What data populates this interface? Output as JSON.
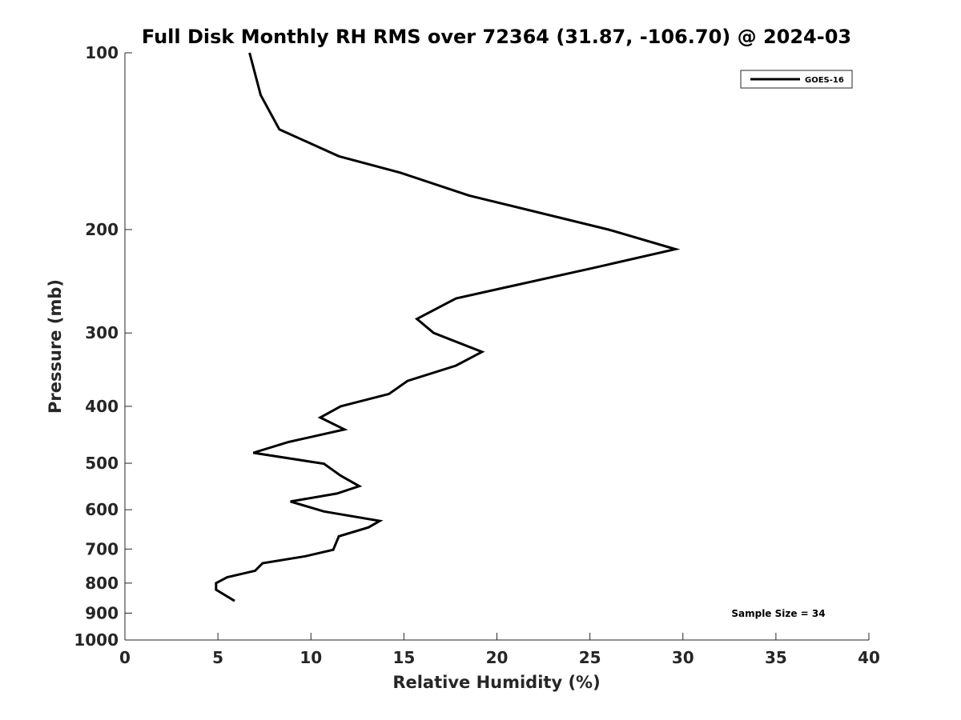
{
  "chart_data": {
    "type": "line",
    "title": "Full Disk Monthly RH RMS over 72364 (31.87, -106.70) @ 2024-03",
    "xlabel": "Relative Humidity (%)",
    "ylabel": "Pressure (mb)",
    "xlim": [
      0,
      40
    ],
    "ylim": [
      100,
      1000
    ],
    "y_scale": "log",
    "y_reversed": true,
    "x_ticks": [
      "0",
      "5",
      "10",
      "15",
      "20",
      "25",
      "30",
      "35",
      "40"
    ],
    "y_ticks": [
      "100",
      "200",
      "300",
      "400",
      "500",
      "600",
      "700",
      "800",
      "900",
      "1000"
    ],
    "legend_position": "top-right",
    "grid": false,
    "series": [
      {
        "name": "GOES-16",
        "color": "#000000",
        "points": [
          {
            "x": 6.7,
            "y": 100
          },
          {
            "x": 7.3,
            "y": 118
          },
          {
            "x": 8.3,
            "y": 135
          },
          {
            "x": 11.5,
            "y": 150
          },
          {
            "x": 14.8,
            "y": 160
          },
          {
            "x": 18.5,
            "y": 175
          },
          {
            "x": 26.0,
            "y": 200
          },
          {
            "x": 29.6,
            "y": 216
          },
          {
            "x": 25.3,
            "y": 232
          },
          {
            "x": 17.8,
            "y": 262
          },
          {
            "x": 15.7,
            "y": 284
          },
          {
            "x": 16.6,
            "y": 300
          },
          {
            "x": 19.2,
            "y": 323
          },
          {
            "x": 17.8,
            "y": 341
          },
          {
            "x": 15.2,
            "y": 362
          },
          {
            "x": 14.2,
            "y": 381
          },
          {
            "x": 11.6,
            "y": 400
          },
          {
            "x": 10.5,
            "y": 418
          },
          {
            "x": 11.8,
            "y": 438
          },
          {
            "x": 8.8,
            "y": 460
          },
          {
            "x": 6.9,
            "y": 480
          },
          {
            "x": 10.7,
            "y": 501
          },
          {
            "x": 11.6,
            "y": 525
          },
          {
            "x": 12.6,
            "y": 547
          },
          {
            "x": 11.4,
            "y": 563
          },
          {
            "x": 8.9,
            "y": 581
          },
          {
            "x": 10.7,
            "y": 604
          },
          {
            "x": 13.7,
            "y": 627
          },
          {
            "x": 13.1,
            "y": 643
          },
          {
            "x": 11.5,
            "y": 666
          },
          {
            "x": 11.2,
            "y": 702
          },
          {
            "x": 9.7,
            "y": 720
          },
          {
            "x": 7.4,
            "y": 740
          },
          {
            "x": 7.0,
            "y": 762
          },
          {
            "x": 5.5,
            "y": 782
          },
          {
            "x": 4.9,
            "y": 800
          },
          {
            "x": 4.9,
            "y": 821
          },
          {
            "x": 5.9,
            "y": 858
          }
        ]
      }
    ],
    "annotation": "Sample Size = 34"
  }
}
